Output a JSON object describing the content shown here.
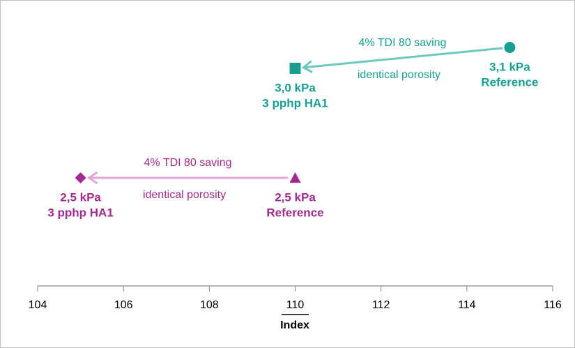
{
  "chart_data": {
    "type": "scatter",
    "xlabel": "Index",
    "xlim": [
      104,
      116
    ],
    "xticks": [
      104,
      106,
      108,
      110,
      112,
      114,
      116
    ],
    "series": [
      {
        "color": "#17a092",
        "arrow_color": "#6cc8bf",
        "markers": [
          "circle",
          "square"
        ],
        "x": [
          115,
          110
        ],
        "labels": [
          [
            "3,1 kPa",
            "Reference"
          ],
          [
            "3,0 kPa",
            "3 pphp HA1"
          ]
        ],
        "arrow_above": "4% TDI 80 saving",
        "arrow_below": "identical porosity"
      },
      {
        "color": "#a3298f",
        "arrow_color": "#e2a6d8",
        "markers": [
          "triangle",
          "diamond"
        ],
        "x": [
          110,
          105
        ],
        "labels": [
          [
            "2,5 kPa",
            "Reference"
          ],
          [
            "2,5 kPa",
            "3 pphp HA1"
          ]
        ],
        "arrow_above": "4% TDI 80 saving",
        "arrow_below": "identical porosity"
      }
    ]
  }
}
